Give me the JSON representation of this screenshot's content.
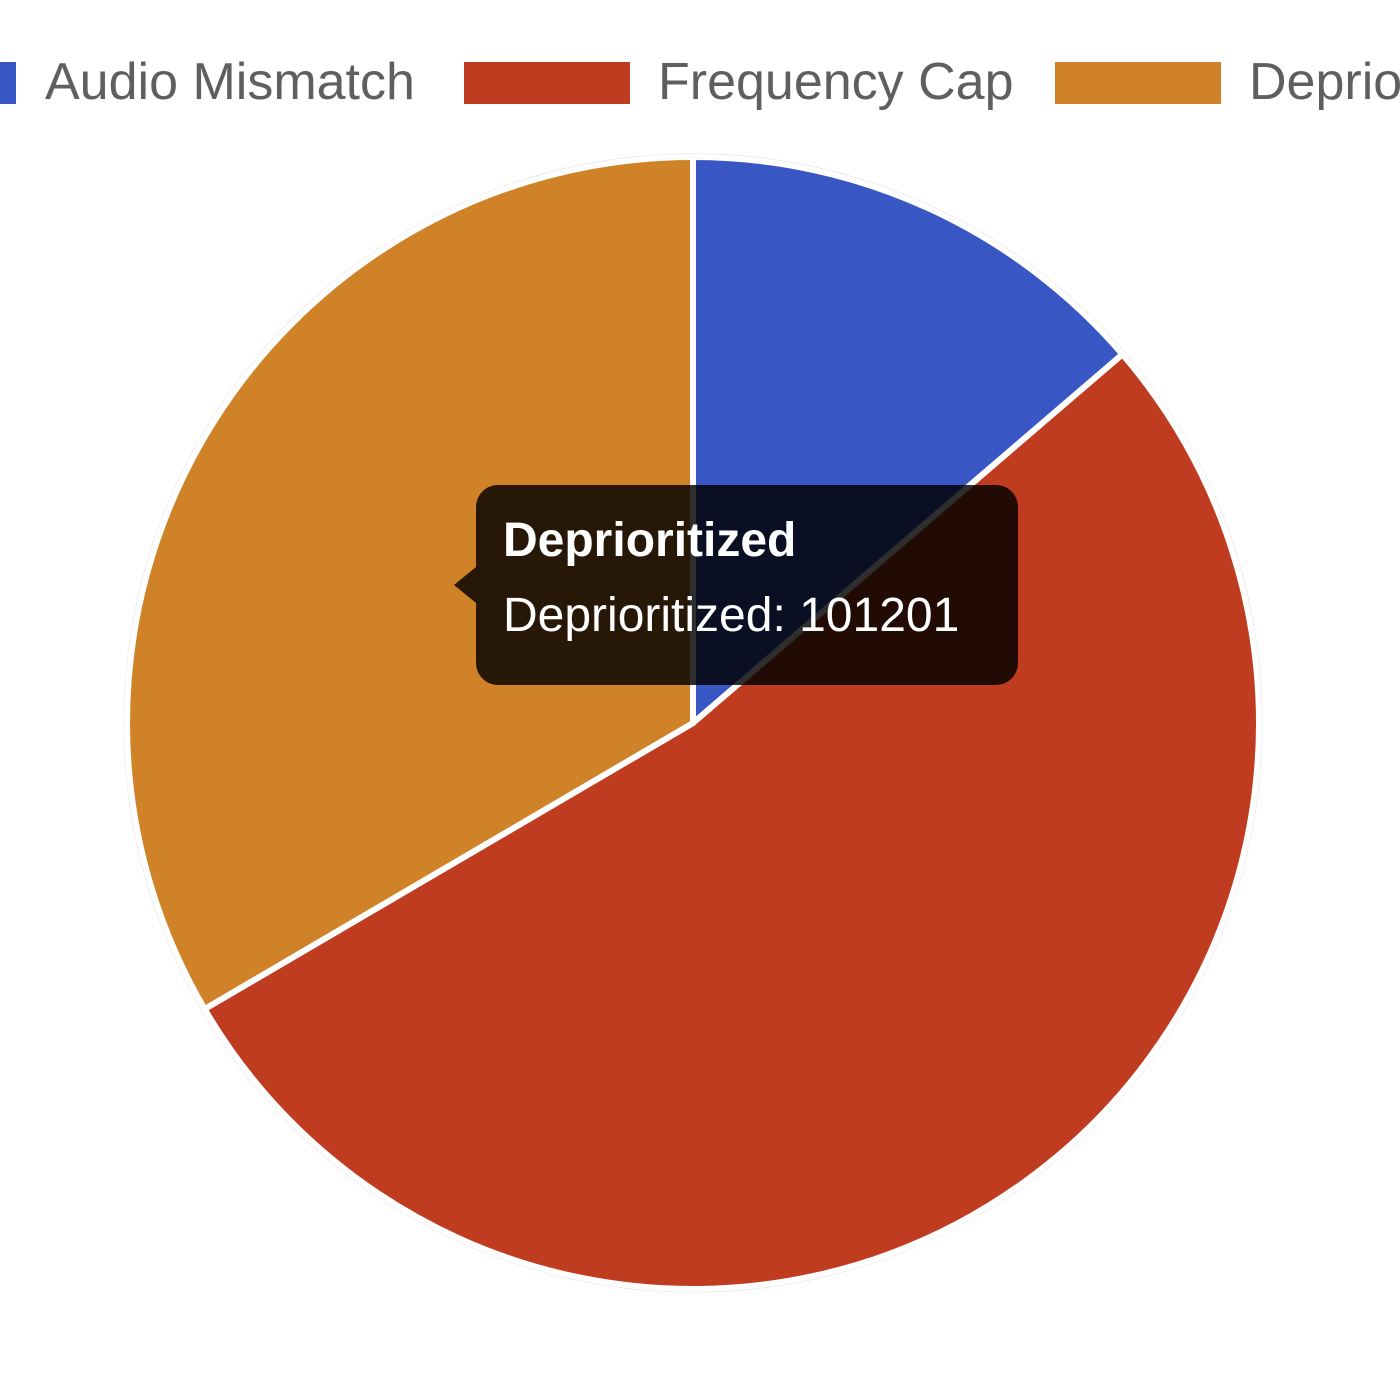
{
  "chart_data": {
    "type": "pie",
    "title": "",
    "legend_position": "top",
    "slices": [
      {
        "label": "Audio Mismatch",
        "value": 41500,
        "color": "#3957c4"
      },
      {
        "label": "Frequency Cap",
        "value": 160000,
        "color": "#c03c20"
      },
      {
        "label": "Deprioritized",
        "value": 101201,
        "color": "#d08228"
      }
    ]
  },
  "tooltip": {
    "title": "Deprioritized",
    "body": "Deprioritized: 101201"
  }
}
